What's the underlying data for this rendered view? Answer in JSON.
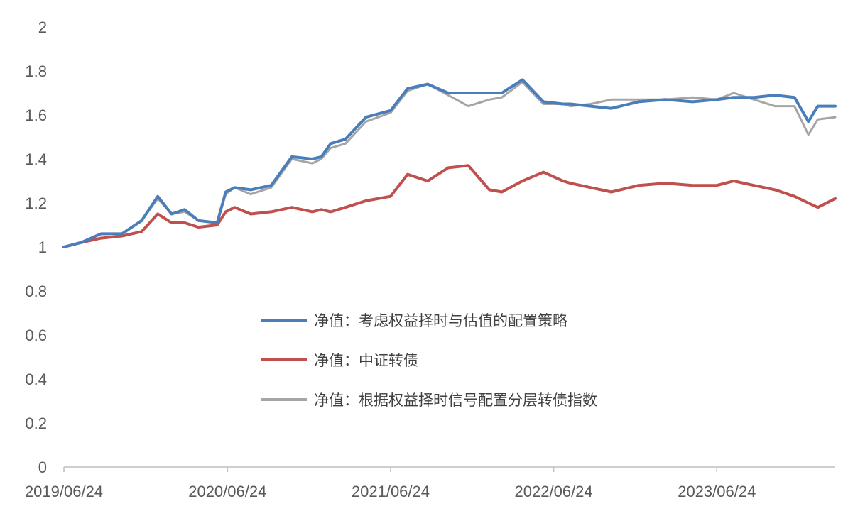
{
  "chart_data": {
    "type": "line",
    "title": "",
    "xlabel": "",
    "ylabel": "",
    "ylim": [
      0,
      2
    ],
    "yticks": [
      "0",
      "0.2",
      "0.4",
      "0.6",
      "0.8",
      "1",
      "1.2",
      "1.4",
      "1.6",
      "1.8",
      "2"
    ],
    "xlim": [
      "2019-06-24",
      "2024-03-15"
    ],
    "xticks": [
      "2019/06/24",
      "2020/06/24",
      "2021/06/24",
      "2022/06/24",
      "2023/06/24"
    ],
    "grid": false,
    "legend_position": "center",
    "series": [
      {
        "name": "净值：考虑权益择时与估值的配置策略",
        "color": "#4a7ebb",
        "x": [
          "2019-06-24",
          "2019-08-01",
          "2019-09-15",
          "2019-11-01",
          "2019-12-15",
          "2020-01-20",
          "2020-02-20",
          "2020-03-20",
          "2020-04-20",
          "2020-06-01",
          "2020-06-20",
          "2020-07-10",
          "2020-08-15",
          "2020-09-30",
          "2020-11-15",
          "2020-12-31",
          "2021-01-20",
          "2021-02-10",
          "2021-03-15",
          "2021-04-30",
          "2021-06-24",
          "2021-08-01",
          "2021-09-15",
          "2021-10-31",
          "2021-12-15",
          "2022-01-31",
          "2022-02-28",
          "2022-04-15",
          "2022-06-01",
          "2022-07-15",
          "2022-07-31",
          "2022-09-15",
          "2022-10-31",
          "2022-12-31",
          "2023-03-01",
          "2023-05-01",
          "2023-06-24",
          "2023-08-01",
          "2023-09-15",
          "2023-11-01",
          "2023-12-15",
          "2024-01-15",
          "2024-02-05",
          "2024-03-15"
        ],
        "y": [
          1.0,
          1.02,
          1.06,
          1.06,
          1.12,
          1.23,
          1.15,
          1.17,
          1.12,
          1.11,
          1.25,
          1.27,
          1.26,
          1.28,
          1.41,
          1.4,
          1.41,
          1.47,
          1.49,
          1.59,
          1.62,
          1.72,
          1.74,
          1.7,
          1.7,
          1.7,
          1.7,
          1.76,
          1.66,
          1.65,
          1.65,
          1.64,
          1.63,
          1.66,
          1.67,
          1.66,
          1.67,
          1.68,
          1.68,
          1.69,
          1.68,
          1.57,
          1.64,
          1.64
        ]
      },
      {
        "name": "净值：中证转债",
        "color": "#c0504d",
        "x": [
          "2019-06-24",
          "2019-08-01",
          "2019-09-15",
          "2019-11-01",
          "2019-12-15",
          "2020-01-20",
          "2020-02-20",
          "2020-03-20",
          "2020-04-20",
          "2020-06-01",
          "2020-06-20",
          "2020-07-10",
          "2020-08-15",
          "2020-09-30",
          "2020-11-15",
          "2020-12-31",
          "2021-01-20",
          "2021-02-10",
          "2021-03-15",
          "2021-04-30",
          "2021-06-24",
          "2021-08-01",
          "2021-09-15",
          "2021-10-31",
          "2021-12-15",
          "2022-01-31",
          "2022-02-28",
          "2022-04-15",
          "2022-06-01",
          "2022-07-15",
          "2022-07-31",
          "2022-09-15",
          "2022-10-31",
          "2022-12-31",
          "2023-03-01",
          "2023-05-01",
          "2023-06-24",
          "2023-08-01",
          "2023-09-15",
          "2023-11-01",
          "2023-12-15",
          "2024-01-15",
          "2024-02-05",
          "2024-03-15"
        ],
        "y": [
          1.0,
          1.02,
          1.04,
          1.05,
          1.07,
          1.15,
          1.11,
          1.11,
          1.09,
          1.1,
          1.16,
          1.18,
          1.15,
          1.16,
          1.18,
          1.16,
          1.17,
          1.16,
          1.18,
          1.21,
          1.23,
          1.33,
          1.3,
          1.36,
          1.37,
          1.26,
          1.25,
          1.3,
          1.34,
          1.3,
          1.29,
          1.27,
          1.25,
          1.28,
          1.29,
          1.28,
          1.28,
          1.3,
          1.28,
          1.26,
          1.23,
          1.2,
          1.18,
          1.22
        ]
      },
      {
        "name": "净值：根据权益择时信号配置分层转债指数",
        "color": "#a5a5a5",
        "x": [
          "2019-06-24",
          "2019-08-01",
          "2019-09-15",
          "2019-11-01",
          "2019-12-15",
          "2020-01-20",
          "2020-02-20",
          "2020-03-20",
          "2020-04-20",
          "2020-06-01",
          "2020-06-20",
          "2020-07-10",
          "2020-08-15",
          "2020-09-30",
          "2020-11-15",
          "2020-12-31",
          "2021-01-20",
          "2021-02-10",
          "2021-03-15",
          "2021-04-30",
          "2021-06-24",
          "2021-08-01",
          "2021-09-15",
          "2021-10-31",
          "2021-12-15",
          "2022-01-31",
          "2022-02-28",
          "2022-04-15",
          "2022-06-01",
          "2022-07-15",
          "2022-07-31",
          "2022-09-15",
          "2022-10-31",
          "2022-12-31",
          "2023-03-01",
          "2023-05-01",
          "2023-06-24",
          "2023-08-01",
          "2023-09-15",
          "2023-11-01",
          "2023-12-15",
          "2024-01-15",
          "2024-02-05",
          "2024-03-15"
        ],
        "y": [
          1.0,
          1.02,
          1.06,
          1.06,
          1.12,
          1.22,
          1.15,
          1.16,
          1.12,
          1.11,
          1.24,
          1.27,
          1.24,
          1.27,
          1.4,
          1.38,
          1.4,
          1.45,
          1.47,
          1.57,
          1.61,
          1.71,
          1.74,
          1.69,
          1.64,
          1.67,
          1.68,
          1.75,
          1.65,
          1.65,
          1.64,
          1.65,
          1.67,
          1.67,
          1.67,
          1.68,
          1.67,
          1.7,
          1.67,
          1.64,
          1.64,
          1.51,
          1.58,
          1.59
        ]
      }
    ]
  }
}
